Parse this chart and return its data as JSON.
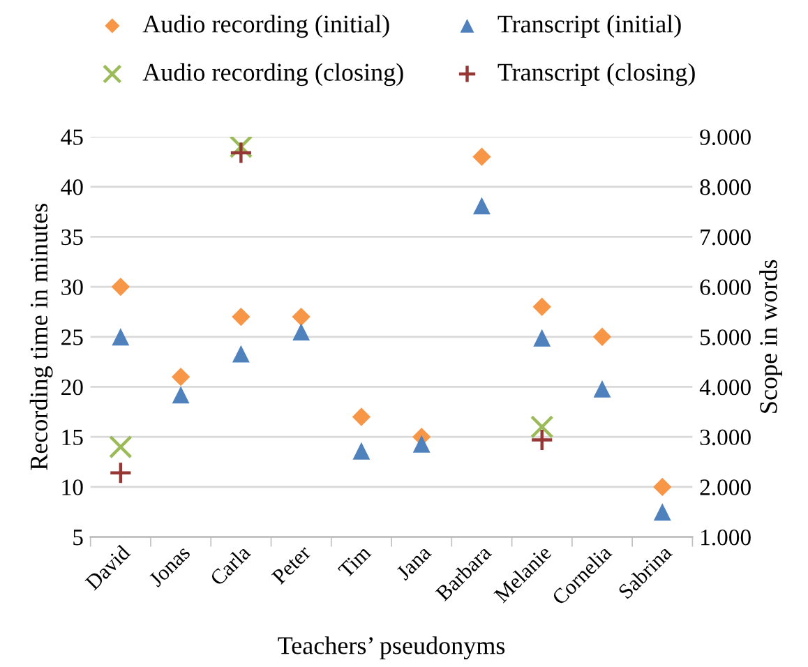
{
  "chart_data": {
    "type": "scatter",
    "categories": [
      "David",
      "Jonas",
      "Carla",
      "Peter",
      "Tim",
      "Jana",
      "Barbara",
      "Melanie",
      "Cornelia",
      "Sabrina"
    ],
    "xlabel": "Teachers’ pseudonyms",
    "ylabel": "Recording time in minutes",
    "y2label": "Scope in words",
    "ylim": [
      5,
      45
    ],
    "yticks": [
      5,
      10,
      15,
      20,
      25,
      30,
      35,
      40,
      45
    ],
    "y2lim": [
      1000,
      9000
    ],
    "y2ticks": [
      {
        "value": 1000,
        "label": "1.000"
      },
      {
        "value": 2000,
        "label": "2.000"
      },
      {
        "value": 3000,
        "label": "3.000"
      },
      {
        "value": 4000,
        "label": "4.000"
      },
      {
        "value": 5000,
        "label": "5.000"
      },
      {
        "value": 6000,
        "label": "6.000"
      },
      {
        "value": 7000,
        "label": "7.000"
      },
      {
        "value": 8000,
        "label": "8.000"
      },
      {
        "value": 9000,
        "label": "9.000"
      }
    ],
    "grid": "y",
    "legend": "top",
    "series": [
      {
        "name": "Audio recording (initial)",
        "color": "#f79646",
        "marker": "diamond",
        "values": [
          30,
          21,
          27,
          27,
          17,
          15,
          43,
          28,
          25,
          10
        ]
      },
      {
        "name": "Audio recording (closing)",
        "color": "#9bbb59",
        "marker": "cross",
        "values": [
          14,
          null,
          44,
          null,
          null,
          null,
          null,
          16,
          null,
          null
        ]
      },
      {
        "name": "Transcript (initial)",
        "color": "#4f81bd",
        "marker": "triangle",
        "axis": "y2",
        "values": [
          5000,
          3840,
          4660,
          5100,
          2720,
          2860,
          7620,
          4980,
          3960,
          1500
        ]
      },
      {
        "name": "Transcript (closing)",
        "color": "#953735",
        "marker": "plus",
        "axis": "y2",
        "values": [
          2280,
          null,
          8680,
          null,
          null,
          null,
          null,
          2940,
          null,
          null
        ]
      }
    ]
  }
}
